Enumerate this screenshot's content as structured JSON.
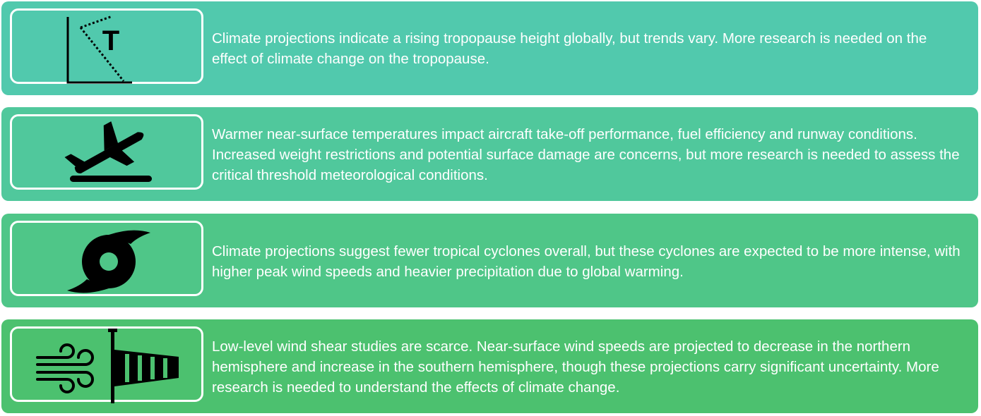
{
  "panels": [
    {
      "id": "tropopause",
      "color": "#51c9ad",
      "icon": "temperature-profile-icon",
      "text": "Climate projections indicate a rising tropopause height globally, but trends vary. More research is needed on the effect of climate change on the tropopause."
    },
    {
      "id": "take-off",
      "color": "#50c89c",
      "icon": "airplane-takeoff-icon",
      "text": "Warmer near-surface temperatures impact aircraft take-off performance, fuel efficiency and runway conditions. Increased weight restrictions and potential surface damage are concerns, but more research is needed to assess the critical threshold meteorological conditions."
    },
    {
      "id": "cyclones",
      "color": "#4fc688",
      "icon": "tropical-cyclone-icon",
      "text": "Climate projections suggest fewer tropical cyclones overall, but these cyclones are expected to be more intense, with higher peak wind speeds and heavier precipitation due to global warming."
    },
    {
      "id": "wind-shear",
      "color": "#4cc16f",
      "icon": "windsock-icon",
      "text": "Low-level wind shear studies are scarce. Near-surface wind speeds are projected to decrease in the northern hemisphere and increase in the southern hemisphere, though these projections carry significant uncertainty. More research is needed to understand the effects of climate change."
    }
  ],
  "icon_labels": {
    "temperature_symbol": "T"
  }
}
